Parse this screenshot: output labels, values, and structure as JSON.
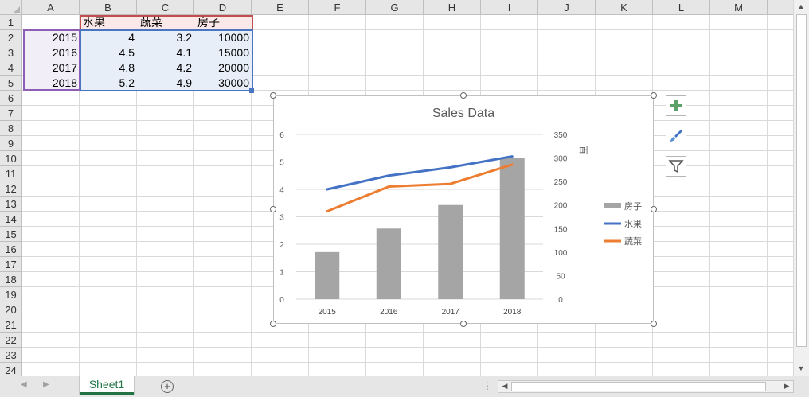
{
  "columns": [
    "A",
    "B",
    "C",
    "D",
    "E",
    "F",
    "G",
    "H",
    "I",
    "J",
    "K",
    "L",
    "M"
  ],
  "rows": [
    "1",
    "2",
    "3",
    "4",
    "5",
    "6",
    "7",
    "8",
    "9",
    "10",
    "11",
    "12",
    "13",
    "14",
    "15",
    "16",
    "17",
    "18",
    "19",
    "20",
    "21",
    "22",
    "23",
    "24"
  ],
  "table": {
    "headers": [
      "水果",
      "蔬菜",
      "房子"
    ],
    "rows": [
      {
        "year": "2015",
        "fruit": "4",
        "veg": "3.2",
        "house": "10000"
      },
      {
        "year": "2016",
        "fruit": "4.5",
        "veg": "4.1",
        "house": "15000"
      },
      {
        "year": "2017",
        "fruit": "4.8",
        "veg": "4.2",
        "house": "20000"
      },
      {
        "year": "2018",
        "fruit": "5.2",
        "veg": "4.9",
        "house": "30000"
      }
    ]
  },
  "chart_data": {
    "type": "bar",
    "title": "Sales Data",
    "categories": [
      "2015",
      "2016",
      "2017",
      "2018"
    ],
    "series": [
      {
        "name": "房子",
        "kind": "bar",
        "axis": "right",
        "values": [
          100,
          150,
          200,
          300
        ],
        "color": "#a5a5a5"
      },
      {
        "name": "水果",
        "kind": "line",
        "axis": "left",
        "values": [
          4,
          4.5,
          4.8,
          5.2
        ],
        "color": "#4472c4"
      },
      {
        "name": "蔬菜",
        "kind": "line",
        "axis": "left",
        "values": [
          3.2,
          4.1,
          4.2,
          4.9
        ],
        "color": "#ed7d31"
      }
    ],
    "ylim": [
      0,
      6
    ],
    "y_ticks": [
      "0",
      "1",
      "2",
      "3",
      "4",
      "5",
      "6"
    ],
    "y2lim": [
      0,
      350
    ],
    "y2_ticks": [
      "0",
      "50",
      "100",
      "150",
      "200",
      "250",
      "300",
      "350"
    ],
    "y2label": "百",
    "legend_position": "right",
    "grid": true
  },
  "tabs": {
    "sheet1": "Sheet1"
  }
}
